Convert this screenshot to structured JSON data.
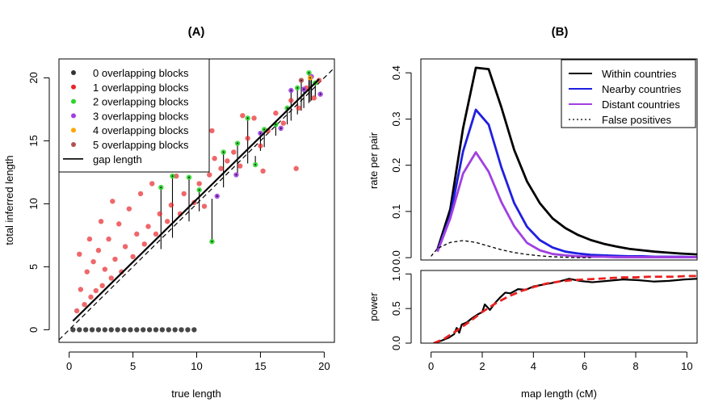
{
  "chart_data": [
    {
      "panel": "A",
      "title": "(A)",
      "type": "scatter",
      "xlabel": "true length",
      "ylabel": "total inferred length",
      "xlim": [
        -0.8,
        20.8
      ],
      "ylim": [
        -1.0,
        21.5
      ],
      "xticks": [
        "0",
        "5",
        "10",
        "15",
        "20"
      ],
      "yticks": [
        "0",
        "5",
        "10",
        "15",
        "20"
      ],
      "legend": {
        "position": "top-left",
        "entries": [
          {
            "label": "0  overlapping blocks",
            "color": "#333333",
            "kind": "point"
          },
          {
            "label": "1  overlapping blocks",
            "color": "#e8262b",
            "kind": "point"
          },
          {
            "label": "2  overlapping blocks",
            "color": "#2bd62b",
            "kind": "point"
          },
          {
            "label": "3  overlapping blocks",
            "color": "#a040e0",
            "kind": "point"
          },
          {
            "label": "4  overlapping blocks",
            "color": "#ffa500",
            "kind": "point"
          },
          {
            "label": "5  overlapping blocks",
            "color": "#b05050",
            "kind": "point"
          },
          {
            "label": "gap length",
            "color": "#000000",
            "kind": "line"
          }
        ]
      },
      "reference_line": {
        "style": "dashed",
        "slope": 1,
        "intercept": 0
      },
      "fit_line": {
        "x": [
          0.3,
          19.6
        ],
        "y": [
          0.7,
          19.9
        ]
      },
      "series": [
        {
          "overlapping_blocks": 0,
          "points": [
            [
              0.3,
              0
            ],
            [
              0.8,
              0
            ],
            [
              1.3,
              0
            ],
            [
              1.8,
              0
            ],
            [
              2.3,
              0
            ],
            [
              2.8,
              0
            ],
            [
              3.3,
              0
            ],
            [
              3.8,
              0
            ],
            [
              4.3,
              0
            ],
            [
              4.8,
              0
            ],
            [
              5.3,
              0
            ],
            [
              5.8,
              0
            ],
            [
              6.3,
              0
            ],
            [
              6.8,
              0
            ],
            [
              7.3,
              0
            ],
            [
              7.8,
              0
            ],
            [
              8.3,
              0
            ],
            [
              8.8,
              0
            ],
            [
              9.3,
              0
            ],
            [
              9.8,
              0
            ]
          ]
        },
        {
          "overlapping_blocks": 1,
          "points": [
            [
              0.6,
              1.5
            ],
            [
              0.9,
              3.2
            ],
            [
              1.2,
              2.0
            ],
            [
              1.4,
              4.6
            ],
            [
              1.7,
              2.6
            ],
            [
              1.9,
              5.4
            ],
            [
              2.1,
              3.1
            ],
            [
              2.3,
              6.3
            ],
            [
              2.6,
              3.5
            ],
            [
              2.8,
              4.8
            ],
            [
              3.1,
              7.2
            ],
            [
              3.3,
              4.1
            ],
            [
              3.6,
              5.6
            ],
            [
              3.9,
              8.4
            ],
            [
              4.1,
              4.6
            ],
            [
              4.4,
              6.6
            ],
            [
              4.7,
              9.6
            ],
            [
              5.0,
              5.8
            ],
            [
              5.3,
              7.6
            ],
            [
              5.6,
              10.8
            ],
            [
              5.9,
              6.8
            ],
            [
              6.2,
              8.2
            ],
            [
              6.5,
              11.6
            ],
            [
              6.8,
              7.6
            ],
            [
              7.1,
              9.2
            ],
            [
              7.4,
              12.8
            ],
            [
              7.7,
              8.6
            ],
            [
              8.0,
              9.9
            ],
            [
              8.4,
              12.2
            ],
            [
              8.7,
              9.2
            ],
            [
              9.0,
              10.8
            ],
            [
              9.4,
              13.1
            ],
            [
              9.8,
              10.1
            ],
            [
              10.2,
              11.6
            ],
            [
              10.6,
              9.8
            ],
            [
              11.0,
              12.3
            ],
            [
              11.4,
              13.6
            ],
            [
              11.9,
              12.8
            ],
            [
              12.4,
              13.4
            ],
            [
              12.9,
              14.1
            ],
            [
              13.4,
              13.0
            ],
            [
              14.0,
              15.2
            ],
            [
              14.5,
              16.8
            ],
            [
              15.0,
              14.6
            ],
            [
              15.6,
              15.8
            ],
            [
              16.2,
              17.2
            ],
            [
              16.8,
              16.4
            ],
            [
              17.4,
              18.2
            ],
            [
              18.0,
              17.6
            ],
            [
              18.6,
              19.2
            ],
            [
              19.2,
              18.4
            ],
            [
              19.6,
              19.8
            ],
            [
              0.8,
              6.0
            ],
            [
              1.6,
              7.2
            ],
            [
              2.5,
              8.6
            ],
            [
              3.4,
              10.2
            ],
            [
              11.2,
              15.8
            ],
            [
              13.6,
              17.0
            ],
            [
              15.2,
              12.6
            ],
            [
              17.8,
              12.8
            ]
          ]
        },
        {
          "overlapping_blocks": 2,
          "points": [
            [
              7.2,
              11.3
            ],
            [
              8.1,
              12.2
            ],
            [
              9.4,
              12.1
            ],
            [
              10.2,
              11.1
            ],
            [
              11.2,
              7.0
            ],
            [
              12.1,
              14.1
            ],
            [
              13.2,
              14.8
            ],
            [
              14.0,
              16.8
            ],
            [
              14.6,
              13.1
            ],
            [
              15.3,
              15.9
            ],
            [
              16.2,
              16.3
            ],
            [
              17.1,
              17.6
            ],
            [
              17.9,
              19.2
            ],
            [
              18.8,
              20.4
            ],
            [
              19.3,
              19.6
            ]
          ]
        },
        {
          "overlapping_blocks": 3,
          "points": [
            [
              11.6,
              10.6
            ],
            [
              13.1,
              12.3
            ],
            [
              15.0,
              15.6
            ],
            [
              16.6,
              16.0
            ],
            [
              18.4,
              19.1
            ],
            [
              19.0,
              20.1
            ],
            [
              19.7,
              18.7
            ],
            [
              17.4,
              19.0
            ]
          ]
        },
        {
          "overlapping_blocks": 4,
          "points": [
            [
              18.9,
              20.0
            ]
          ]
        },
        {
          "overlapping_blocks": 5,
          "points": [
            [
              18.2,
              19.8
            ]
          ]
        }
      ]
    },
    {
      "panel": "B",
      "title": "(B)",
      "type": "line",
      "xlabel": "map length (cM)",
      "xlim": [
        -0.4,
        10.4
      ],
      "xticks": [
        "0",
        "2",
        "4",
        "6",
        "8",
        "10"
      ],
      "top": {
        "ylabel": "rate per pair",
        "ylim": [
          -0.005,
          0.43
        ],
        "yticks": [
          "0.0",
          "0.1",
          "0.2",
          "0.3",
          "0.4"
        ],
        "legend": {
          "position": "top-right",
          "entries": [
            {
              "label": "Within countries",
              "color": "#000000",
              "style": "solid"
            },
            {
              "label": "Nearby countries",
              "color": "#1f1fe0",
              "style": "solid"
            },
            {
              "label": "Distant countries",
              "color": "#a040e0",
              "style": "solid"
            },
            {
              "label": "False positives",
              "color": "#000000",
              "style": "dotted"
            }
          ]
        },
        "series": [
          {
            "name": "Within countries",
            "x": [
              0.25,
              0.75,
              1.25,
              1.75,
              2.25,
              2.75,
              3.25,
              3.75,
              4.25,
              4.75,
              5.25,
              5.75,
              6.25,
              6.75,
              7.25,
              7.75,
              8.25,
              8.75,
              9.25,
              9.75,
              10.4
            ],
            "y": [
              0.018,
              0.105,
              0.28,
              0.411,
              0.408,
              0.325,
              0.233,
              0.165,
              0.118,
              0.085,
              0.064,
              0.049,
              0.038,
              0.03,
              0.024,
              0.019,
              0.016,
              0.013,
              0.011,
              0.009,
              0.007
            ]
          },
          {
            "name": "Nearby countries",
            "x": [
              0.25,
              0.75,
              1.25,
              1.75,
              2.25,
              2.75,
              3.25,
              3.75,
              4.25,
              4.75,
              5.25,
              5.75,
              6.25,
              6.75,
              7.25,
              7.75,
              8.25,
              8.75,
              9.25,
              9.75,
              10.4
            ],
            "y": [
              0.015,
              0.09,
              0.23,
              0.32,
              0.288,
              0.195,
              0.118,
              0.067,
              0.038,
              0.022,
              0.013,
              0.009,
              0.006,
              0.005,
              0.004,
              0.003,
              0.003,
              0.002,
              0.002,
              0.002,
              0.001
            ]
          },
          {
            "name": "Distant countries",
            "x": [
              0.25,
              0.75,
              1.25,
              1.75,
              2.25,
              2.75,
              3.25,
              3.75,
              4.25,
              4.75,
              5.25,
              5.75,
              6.25,
              6.75,
              7.25,
              7.75,
              8.25,
              8.75,
              9.25,
              9.75,
              10.4
            ],
            "y": [
              0.013,
              0.085,
              0.182,
              0.228,
              0.186,
              0.12,
              0.068,
              0.032,
              0.016,
              0.008,
              0.005,
              0.003,
              0.002,
              0.002,
              0.001,
              0.001,
              0.001,
              0.001,
              0.001,
              0.001,
              0.001
            ]
          },
          {
            "name": "False positives",
            "x": [
              0.0,
              0.25,
              0.75,
              1.25,
              1.75,
              2.25,
              2.75,
              3.25,
              3.75,
              4.25,
              4.75,
              5.25,
              5.75,
              6.25
            ],
            "y": [
              0.003,
              0.02,
              0.033,
              0.037,
              0.033,
              0.025,
              0.017,
              0.011,
              0.007,
              0.004,
              0.002,
              0.001,
              0.0,
              0.0
            ]
          }
        ]
      },
      "bottom": {
        "ylabel": "power",
        "ylim": [
          0.0,
          1.05
        ],
        "yticks": [
          "0.0",
          "0.5",
          "1.0"
        ],
        "series": [
          {
            "style": "solid",
            "color": "#000000",
            "x": [
              0.1,
              0.3,
              0.5,
              0.7,
              0.9,
              1.0,
              1.1,
              1.2,
              1.4,
              1.6,
              1.8,
              2.0,
              2.1,
              2.2,
              2.3,
              2.5,
              2.7,
              2.9,
              3.1,
              3.4,
              3.7,
              4.0,
              4.3,
              4.6,
              5.0,
              5.4,
              5.8,
              6.3,
              6.9,
              7.5,
              8.1,
              8.7,
              9.3,
              9.9,
              10.4
            ],
            "y": [
              0.0,
              0.02,
              0.05,
              0.08,
              0.13,
              0.22,
              0.15,
              0.27,
              0.3,
              0.36,
              0.41,
              0.45,
              0.56,
              0.52,
              0.48,
              0.58,
              0.66,
              0.73,
              0.72,
              0.78,
              0.77,
              0.82,
              0.84,
              0.86,
              0.89,
              0.93,
              0.9,
              0.88,
              0.9,
              0.92,
              0.91,
              0.89,
              0.9,
              0.92,
              0.93
            ]
          },
          {
            "style": "dashed",
            "color": "#e82020",
            "x": [
              0.1,
              0.5,
              1.0,
              1.5,
              2.0,
              2.5,
              3.0,
              3.5,
              4.0,
              4.5,
              5.0,
              5.5,
              6.0,
              6.5,
              7.0,
              7.5,
              8.0,
              8.5,
              9.0,
              9.5,
              10.0,
              10.4
            ],
            "y": [
              0.0,
              0.06,
              0.18,
              0.31,
              0.45,
              0.57,
              0.67,
              0.75,
              0.81,
              0.86,
              0.89,
              0.91,
              0.92,
              0.93,
              0.94,
              0.95,
              0.95,
              0.96,
              0.96,
              0.96,
              0.97,
              0.97
            ]
          }
        ]
      }
    }
  ]
}
